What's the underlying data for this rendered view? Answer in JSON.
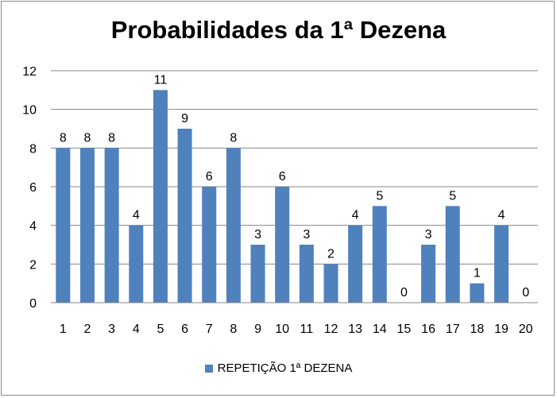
{
  "chart_data": {
    "type": "bar",
    "title": "Probabilidades da 1ª Dezena",
    "categories": [
      "1",
      "2",
      "3",
      "4",
      "5",
      "6",
      "7",
      "8",
      "9",
      "10",
      "11",
      "12",
      "13",
      "14",
      "15",
      "16",
      "17",
      "18",
      "19",
      "20"
    ],
    "series": [
      {
        "name": "REPETIÇÃO 1ª DEZENA",
        "values": [
          8,
          8,
          8,
          4,
          11,
          9,
          6,
          8,
          3,
          6,
          3,
          2,
          4,
          5,
          0,
          3,
          5,
          1,
          4,
          0
        ],
        "color": "#4f81bd"
      }
    ],
    "ylim": [
      0,
      12
    ],
    "yticks": [
      0,
      2,
      4,
      6,
      8,
      10,
      12
    ],
    "grid": true,
    "data_labels": true,
    "legend_position": "bottom"
  }
}
